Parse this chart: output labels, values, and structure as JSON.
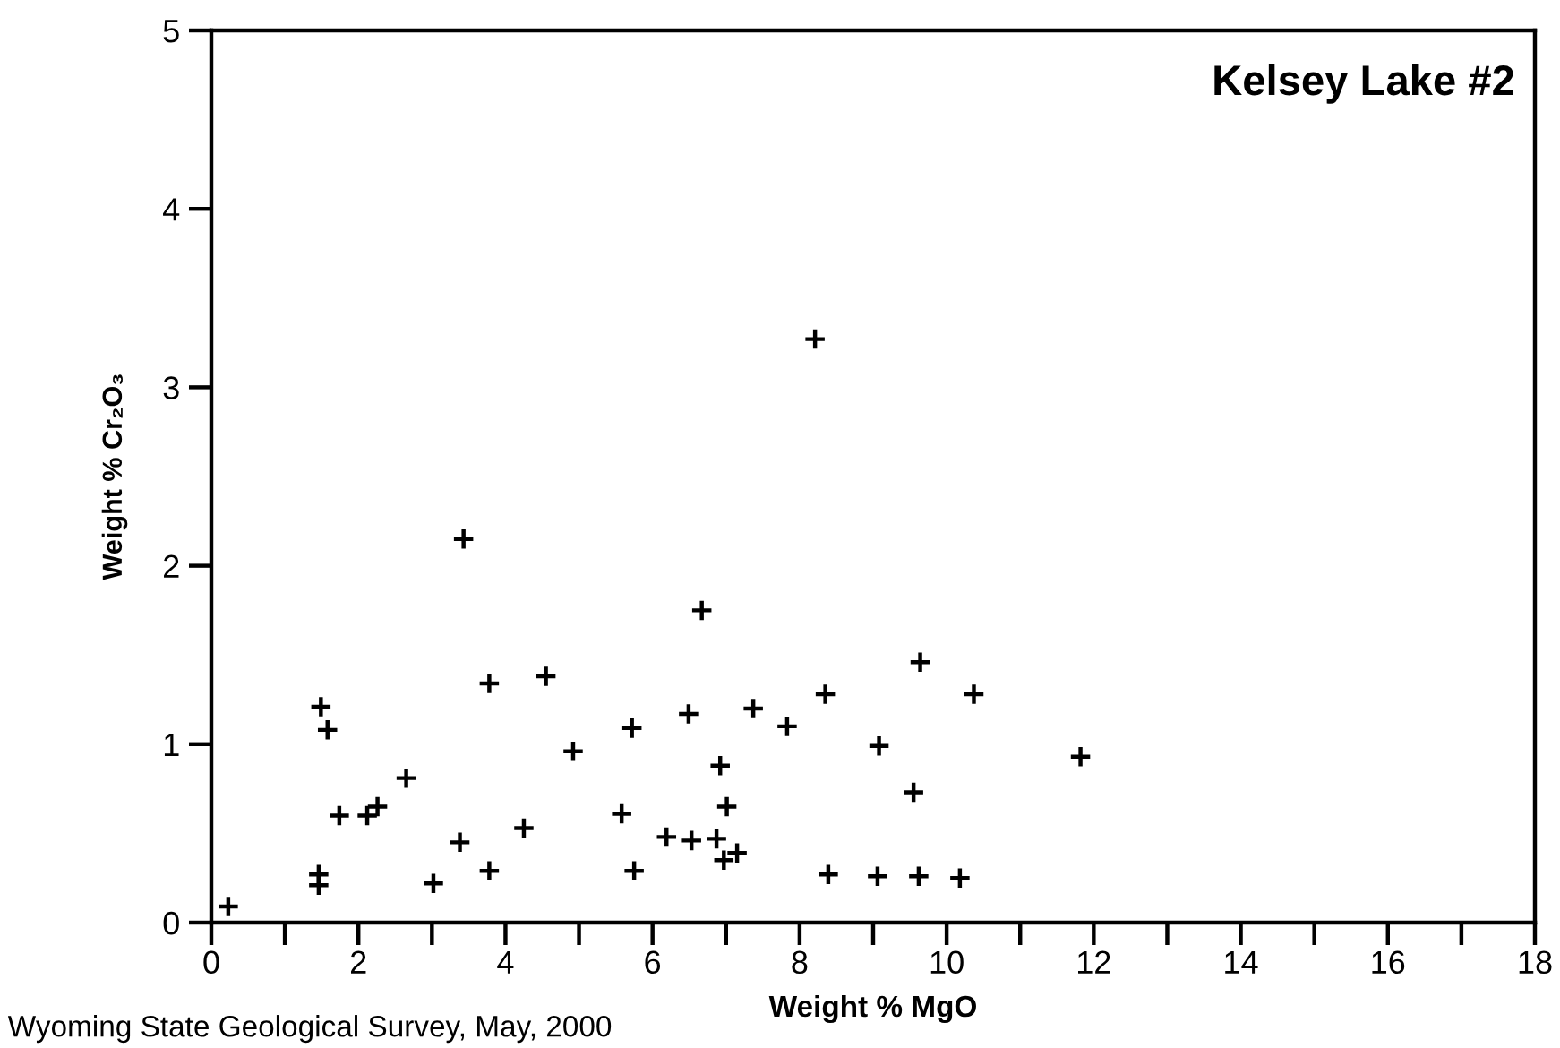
{
  "chart_data": {
    "type": "scatter",
    "xlabel": "Weight % MgO",
    "ylabel": "Weight % Cr₂O₃",
    "annotations": [
      "Kelsey Lake #2",
      "Wyoming State Geological Survey, May, 2000"
    ],
    "marker": "cross",
    "grid": false,
    "legend": false,
    "xlim": [
      0,
      18
    ],
    "ylim": [
      0,
      5
    ],
    "xticks": [
      0,
      {
        "value": 1,
        "label": null
      },
      2,
      {
        "value": 3,
        "label": null
      },
      4,
      {
        "value": 5,
        "label": null
      },
      6,
      {
        "value": 7,
        "label": null
      },
      8,
      {
        "value": 9,
        "label": null
      },
      10,
      {
        "value": 11,
        "label": null
      },
      12,
      {
        "value": 13,
        "label": null
      },
      14,
      {
        "value": 15,
        "label": null
      },
      16,
      {
        "value": 17,
        "label": null
      },
      18
    ],
    "yticks": [
      0,
      1,
      2,
      3,
      4,
      5
    ],
    "series": [
      {
        "color": "#000000",
        "x": [
          0.23,
          1.46,
          1.46,
          1.49,
          1.58,
          1.74,
          2.12,
          2.26,
          2.65,
          3.02,
          3.38,
          3.43,
          3.78,
          3.78,
          4.25,
          4.55,
          4.92,
          5.58,
          5.72,
          5.75,
          6.19,
          6.49,
          6.53,
          6.67,
          6.87,
          6.92,
          7.01,
          6.97,
          8.21,
          7.15,
          7.37,
          7.83,
          8.35,
          8.39,
          9.08,
          9.06,
          9.64,
          9.55,
          9.62,
          10.18,
          10.37,
          11.82
        ],
        "values": [
          0.09,
          0.27,
          0.21,
          1.21,
          1.08,
          0.6,
          0.6,
          0.65,
          0.81,
          0.22,
          0.45,
          2.15,
          1.34,
          0.29,
          0.53,
          1.38,
          0.96,
          0.61,
          1.09,
          0.29,
          0.48,
          1.17,
          0.46,
          1.75,
          0.47,
          0.88,
          0.65,
          0.35,
          3.27,
          0.39,
          1.2,
          1.1,
          1.28,
          0.27,
          0.99,
          0.26,
          1.46,
          0.73,
          0.26,
          0.25,
          1.28,
          0.93
        ]
      }
    ]
  }
}
